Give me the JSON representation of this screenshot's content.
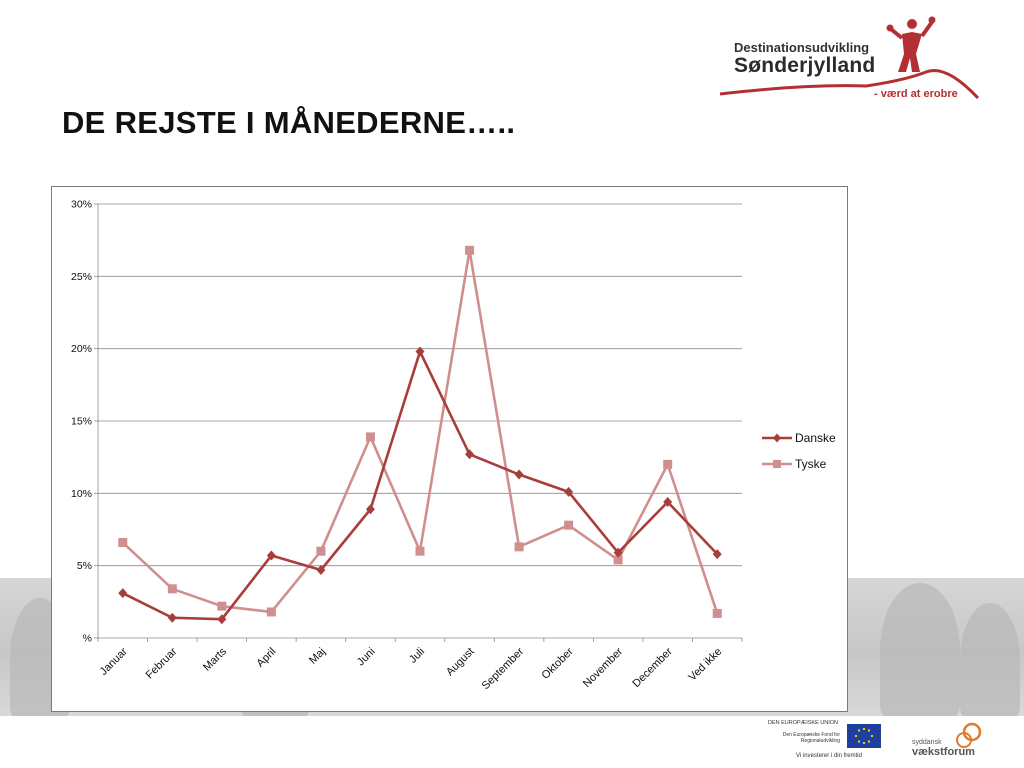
{
  "slide": {
    "title": "DE REJSTE I MÅNEDERNE….."
  },
  "logo": {
    "line1": "Destinationsudvikling",
    "line2": "Sønderjylland",
    "tagline": "- værd at erobre",
    "accent_color": "#b32f33"
  },
  "footer": {
    "eu_title": "DEN EUROPÆISKE UNION",
    "eu_fund": "Den Europæiske Fond for Regionaludvikling",
    "eu_slogan": "Vi investerer i din fremtid",
    "vf_small": "syddansk",
    "vf_big": "vækstforum"
  },
  "chart_data": {
    "type": "line",
    "categories": [
      "Januar",
      "Februar",
      "Marts",
      "April",
      "Maj",
      "Juni",
      "Juli",
      "August",
      "September",
      "Oktober",
      "November",
      "December",
      "Ved ikke"
    ],
    "series": [
      {
        "name": "Danske",
        "color": "#a83e3c",
        "marker": "diamond",
        "values": [
          3.1,
          1.4,
          1.3,
          5.7,
          4.7,
          8.9,
          19.8,
          12.7,
          11.3,
          10.1,
          5.9,
          9.4,
          5.8
        ]
      },
      {
        "name": "Tyske",
        "color": "#d08f8f",
        "marker": "square",
        "values": [
          6.6,
          3.4,
          2.2,
          1.8,
          6.0,
          13.9,
          6.0,
          26.8,
          6.3,
          7.8,
          5.4,
          12.0,
          1.7
        ]
      }
    ],
    "y_ticks": [
      "%",
      "5%",
      "10%",
      "15%",
      "20%",
      "25%",
      "30%"
    ],
    "ylim": [
      0,
      30
    ],
    "y_step": 5,
    "grid": true,
    "legend_position": "right"
  }
}
